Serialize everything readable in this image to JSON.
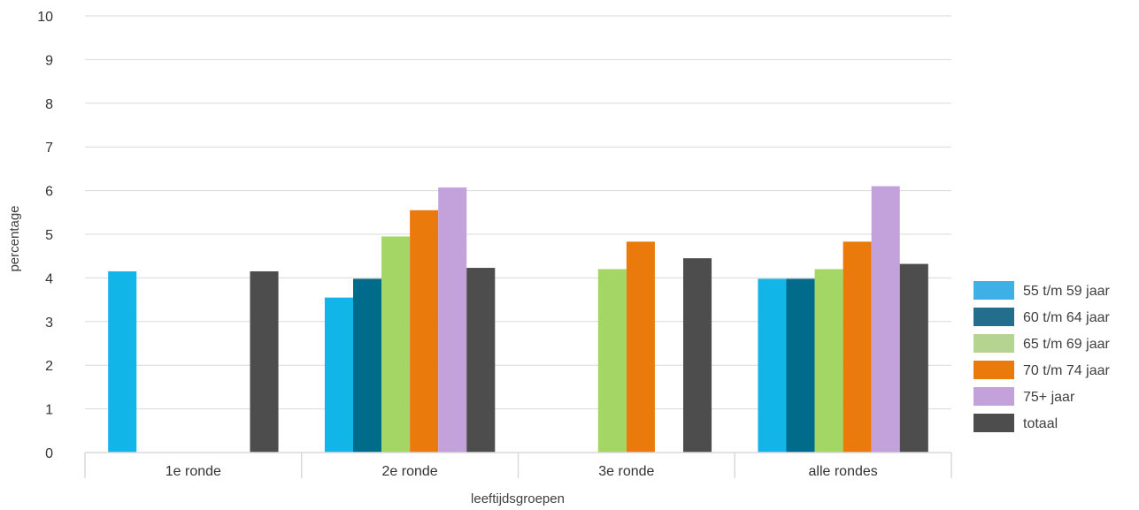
{
  "chart_data": {
    "type": "bar",
    "xlabel": "leeftijdsgroepen",
    "ylabel": "percentage",
    "ylim": [
      0,
      10
    ],
    "yticks": [
      0,
      1,
      2,
      3,
      4,
      5,
      6,
      7,
      8,
      9,
      10
    ],
    "grid": true,
    "legend_position": "right",
    "categories": [
      "1e ronde",
      "2e ronde",
      "3e ronde",
      "alle rondes"
    ],
    "series": [
      {
        "name": "55 t/m 59 jaar",
        "color": "#12b5e8",
        "legend_color": "#3fb0e6",
        "values": [
          4.15,
          3.55,
          null,
          3.98
        ]
      },
      {
        "name": "60 t/m 64 jaar",
        "color": "#006b8a",
        "legend_color": "#236e8c",
        "values": [
          null,
          3.98,
          null,
          3.98
        ]
      },
      {
        "name": "65 t/m 69 jaar",
        "color": "#a3d665",
        "legend_color": "#b5d48f",
        "values": [
          null,
          4.95,
          4.2,
          4.2
        ]
      },
      {
        "name": "70 t/m 74 jaar",
        "color": "#eb7a0c",
        "legend_color": "#eb7a0c",
        "values": [
          null,
          5.55,
          4.83,
          4.83
        ]
      },
      {
        "name": "75+ jaar",
        "color": "#c3a2dc",
        "legend_color": "#c3a2dc",
        "values": [
          null,
          6.07,
          null,
          6.1
        ]
      },
      {
        "name": "totaal",
        "color": "#4d4d4d",
        "legend_color": "#4d4d4d",
        "values": [
          4.15,
          4.23,
          4.45,
          4.32
        ]
      }
    ]
  }
}
